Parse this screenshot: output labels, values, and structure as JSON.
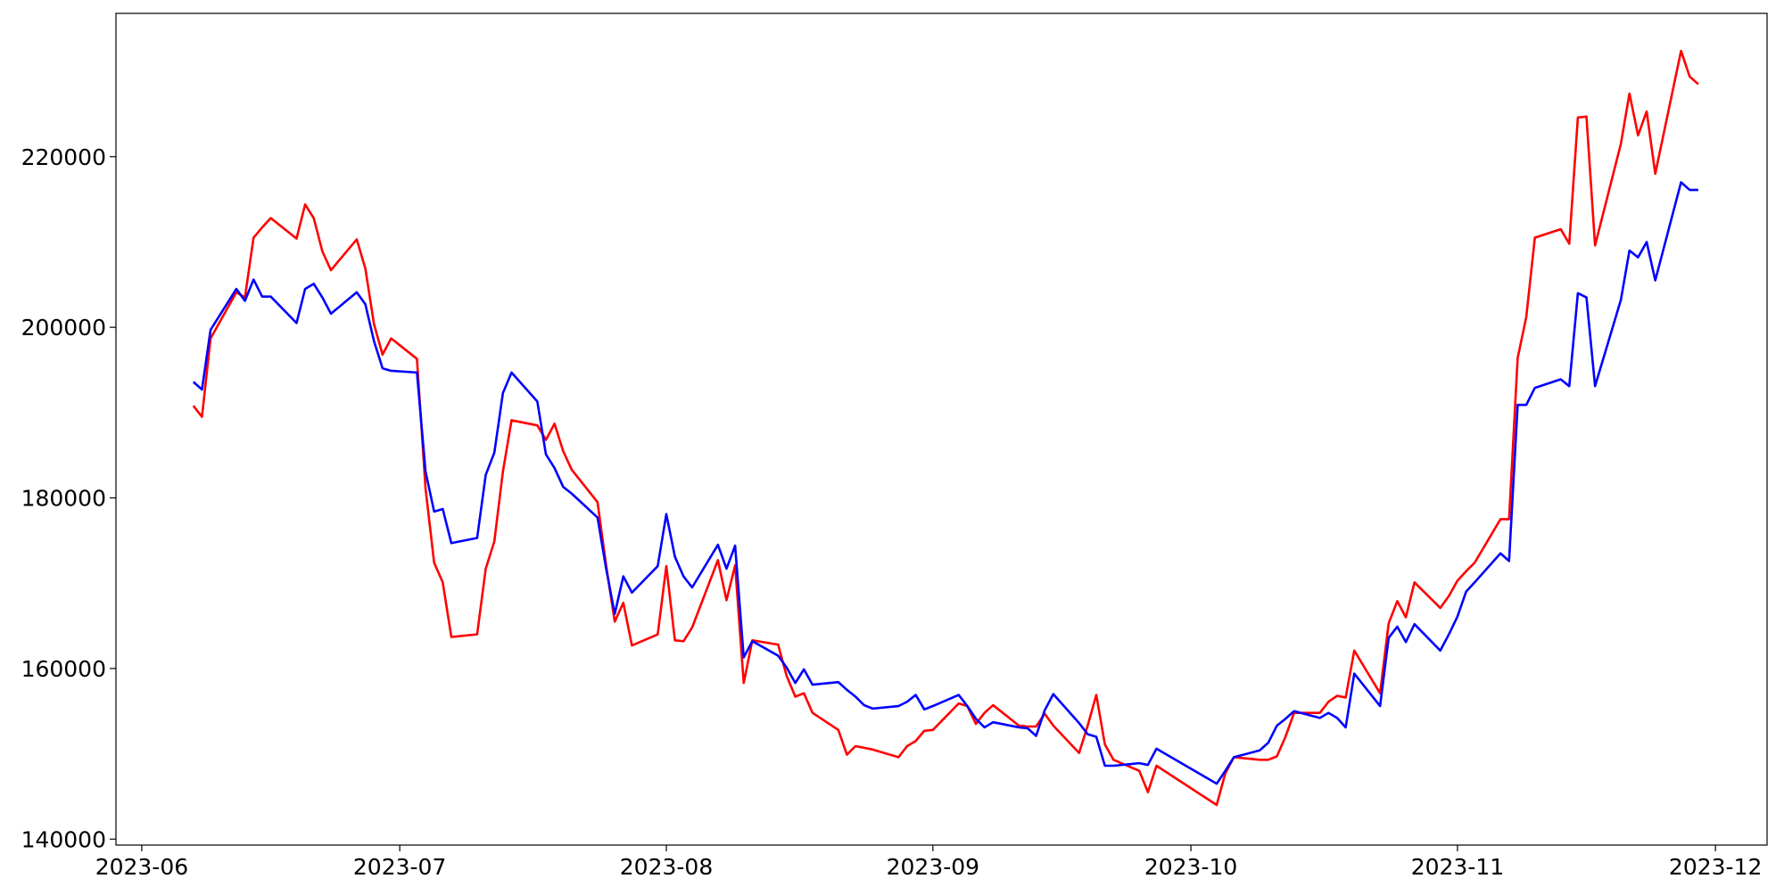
{
  "chart_data": {
    "type": "line",
    "x": [
      "2023-06-07",
      "2023-06-08",
      "2023-06-09",
      "2023-06-12",
      "2023-06-13",
      "2023-06-14",
      "2023-06-15",
      "2023-06-16",
      "2023-06-19",
      "2023-06-20",
      "2023-06-21",
      "2023-06-22",
      "2023-06-23",
      "2023-06-26",
      "2023-06-27",
      "2023-06-28",
      "2023-06-29",
      "2023-06-30",
      "2023-07-03",
      "2023-07-04",
      "2023-07-05",
      "2023-07-06",
      "2023-07-07",
      "2023-07-10",
      "2023-07-11",
      "2023-07-12",
      "2023-07-13",
      "2023-07-14",
      "2023-07-17",
      "2023-07-18",
      "2023-07-19",
      "2023-07-20",
      "2023-07-21",
      "2023-07-24",
      "2023-07-25",
      "2023-07-26",
      "2023-07-27",
      "2023-07-28",
      "2023-07-31",
      "2023-08-01",
      "2023-08-02",
      "2023-08-03",
      "2023-08-04",
      "2023-08-07",
      "2023-08-08",
      "2023-08-09",
      "2023-08-10",
      "2023-08-11",
      "2023-08-14",
      "2023-08-15",
      "2023-08-16",
      "2023-08-17",
      "2023-08-18",
      "2023-08-21",
      "2023-08-22",
      "2023-08-23",
      "2023-08-24",
      "2023-08-25",
      "2023-08-28",
      "2023-08-29",
      "2023-08-30",
      "2023-08-31",
      "2023-09-01",
      "2023-09-04",
      "2023-09-05",
      "2023-09-06",
      "2023-09-07",
      "2023-09-08",
      "2023-09-11",
      "2023-09-12",
      "2023-09-13",
      "2023-09-14",
      "2023-09-15",
      "2023-09-18",
      "2023-09-19",
      "2023-09-20",
      "2023-09-21",
      "2023-09-22",
      "2023-09-25",
      "2023-09-26",
      "2023-09-27",
      "2023-10-04",
      "2023-10-05",
      "2023-10-06",
      "2023-10-09",
      "2023-10-10",
      "2023-10-11",
      "2023-10-12",
      "2023-10-13",
      "2023-10-16",
      "2023-10-17",
      "2023-10-18",
      "2023-10-19",
      "2023-10-20",
      "2023-10-23",
      "2023-10-24",
      "2023-10-25",
      "2023-10-26",
      "2023-10-27",
      "2023-10-30",
      "2023-10-31",
      "2023-11-01",
      "2023-11-02",
      "2023-11-03",
      "2023-11-06",
      "2023-11-07",
      "2023-11-08",
      "2023-11-09",
      "2023-11-10",
      "2023-11-13",
      "2023-11-14",
      "2023-11-15",
      "2023-11-16",
      "2023-11-17",
      "2023-11-20",
      "2023-11-21",
      "2023-11-22",
      "2023-11-23",
      "2023-11-24",
      "2023-11-27",
      "2023-11-28",
      "2023-11-29"
    ],
    "series": [
      {
        "color": "#ff0000",
        "values": [
          190800,
          189500,
          198700,
          204100,
          203500,
          210500,
          211700,
          212800,
          210400,
          214400,
          212800,
          208900,
          206700,
          210300,
          206900,
          200400,
          196800,
          198700,
          196300,
          181100,
          172400,
          170100,
          163700,
          164000,
          171700,
          174900,
          183100,
          189100,
          188500,
          186800,
          188700,
          185500,
          183300,
          179500,
          172100,
          165500,
          167700,
          162700,
          164000,
          172000,
          163300,
          163200,
          164800,
          172700,
          168000,
          172100,
          158300,
          163300,
          162800,
          159100,
          156700,
          157100,
          154800,
          152800,
          149900,
          150900,
          150700,
          150500,
          149600,
          150900,
          151500,
          152700,
          152800,
          155900,
          155600,
          153500,
          154800,
          155700,
          153300,
          153200,
          153200,
          154700,
          153300,
          150100,
          153300,
          156900,
          151100,
          149300,
          148000,
          145500,
          148600,
          144000,
          147700,
          149600,
          149300,
          149300,
          149700,
          152000,
          154800,
          154800,
          156100,
          156800,
          156600,
          162100,
          157100,
          165300,
          167900,
          166000,
          170100,
          167100,
          168500,
          170300,
          171400,
          172400,
          177500,
          177500,
          196400,
          201200,
          210500,
          211500,
          209800,
          224600,
          224700,
          209600,
          221500,
          227400,
          222500,
          225300,
          218000,
          232400,
          229400,
          228500
        ]
      },
      {
        "color": "#0000ff",
        "values": [
          193600,
          192700,
          199700,
          204500,
          203100,
          205600,
          203600,
          203600,
          200500,
          204500,
          205100,
          203500,
          201600,
          204100,
          202700,
          198400,
          195200,
          194900,
          194700,
          183100,
          178400,
          178700,
          174700,
          175300,
          182700,
          185300,
          192300,
          194700,
          191300,
          185100,
          183500,
          181300,
          180500,
          177700,
          171700,
          166400,
          170800,
          168900,
          172000,
          178100,
          173100,
          170800,
          169500,
          174500,
          171700,
          174400,
          161300,
          163200,
          161500,
          160100,
          158300,
          159900,
          158100,
          158400,
          157500,
          156700,
          155700,
          155300,
          155600,
          156100,
          156900,
          155200,
          155600,
          156900,
          155600,
          154100,
          153100,
          153700,
          153100,
          153000,
          152100,
          155100,
          157000,
          153600,
          152300,
          152000,
          148600,
          148600,
          148900,
          148700,
          150600,
          146500,
          148000,
          149600,
          150400,
          151300,
          153300,
          154100,
          155000,
          154200,
          154800,
          154200,
          153100,
          159400,
          155600,
          163600,
          164900,
          163100,
          165200,
          162100,
          164000,
          166100,
          169000,
          170100,
          173500,
          172600,
          190900,
          190900,
          192900,
          193900,
          193100,
          204000,
          203500,
          193100,
          203200,
          209000,
          208200,
          210000,
          205500,
          217000,
          216100,
          216100
        ]
      }
    ],
    "xlim": [
      "2023-05-29",
      "2023-12-07"
    ],
    "xticks": [
      {
        "value": "2023-06-01",
        "label": "2023-06"
      },
      {
        "value": "2023-07-01",
        "label": "2023-07"
      },
      {
        "value": "2023-08-01",
        "label": "2023-08"
      },
      {
        "value": "2023-09-01",
        "label": "2023-09"
      },
      {
        "value": "2023-10-01",
        "label": "2023-10"
      },
      {
        "value": "2023-11-01",
        "label": "2023-11"
      },
      {
        "value": "2023-12-01",
        "label": "2023-12"
      }
    ],
    "ylim": [
      139300,
      236800
    ],
    "yticks": [
      140000,
      160000,
      180000,
      200000,
      220000
    ],
    "grid": false
  }
}
